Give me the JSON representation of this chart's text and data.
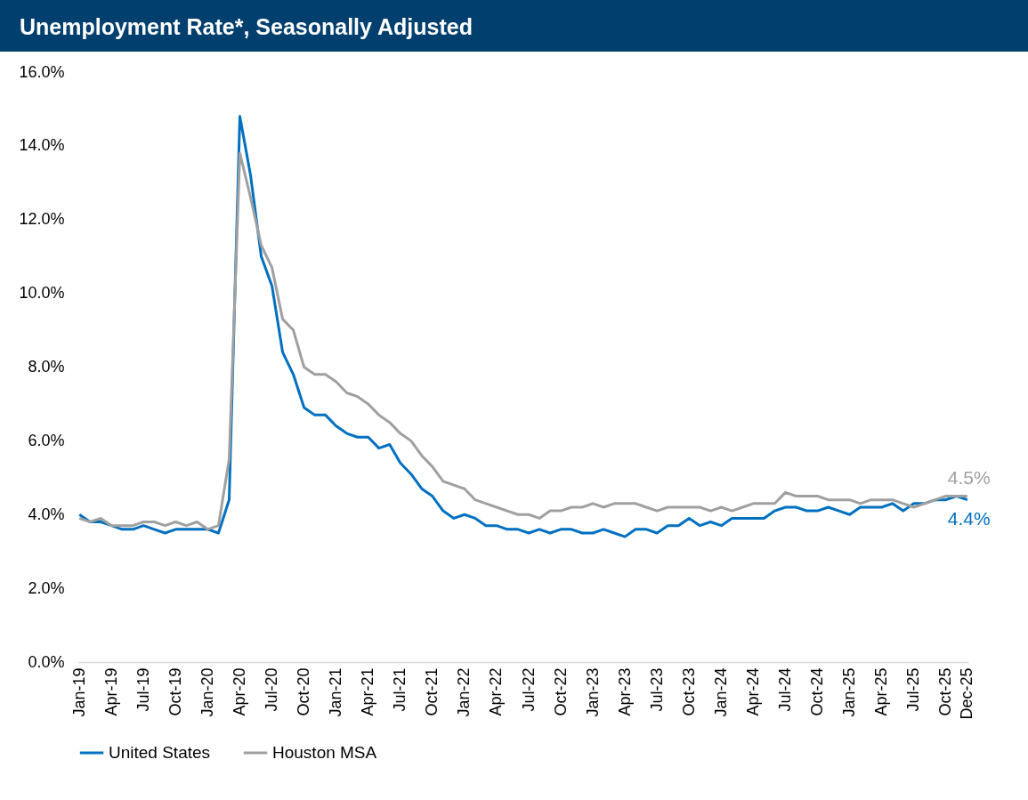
{
  "chart_data": {
    "type": "line",
    "title": "Unemployment Rate*, Seasonally Adjusted",
    "categories": [
      "Jan-19",
      null,
      null,
      "Apr-19",
      null,
      null,
      "Jul-19",
      null,
      null,
      "Oct-19",
      null,
      null,
      "Jan-20",
      null,
      null,
      "Apr-20",
      null,
      null,
      "Jul-20",
      null,
      null,
      "Oct-20",
      null,
      null,
      "Jan-21",
      null,
      null,
      "Apr-21",
      null,
      null,
      "Jul-21",
      null,
      null,
      "Oct-21",
      null,
      null,
      "Jan-22",
      null,
      null,
      "Apr-22",
      null,
      null,
      "Jul-22",
      null,
      null,
      "Oct-22",
      null,
      null,
      "Jan-23",
      null,
      null,
      "Apr-23",
      null,
      null,
      "Jul-23",
      null,
      null,
      "Oct-23",
      null,
      null,
      "Jan-24",
      null,
      null,
      "Apr-24",
      null,
      null,
      "Jul-24",
      null,
      null,
      "Oct-24",
      null,
      null,
      "Jan-25",
      null,
      null,
      "Apr-25",
      null,
      null,
      "Jul-25",
      null,
      null,
      "Oct-25",
      null,
      "Dec-25"
    ],
    "series": [
      {
        "name": "United States",
        "color": "#0070c0",
        "values": [
          4.0,
          3.8,
          3.8,
          3.7,
          3.6,
          3.6,
          3.7,
          3.6,
          3.5,
          3.6,
          3.6,
          3.6,
          3.6,
          3.5,
          4.4,
          14.8,
          13.2,
          11.0,
          10.2,
          8.4,
          7.8,
          6.9,
          6.7,
          6.7,
          6.4,
          6.2,
          6.1,
          6.1,
          5.8,
          5.9,
          5.4,
          5.1,
          4.7,
          4.5,
          4.1,
          3.9,
          4.0,
          3.9,
          3.7,
          3.7,
          3.6,
          3.6,
          3.5,
          3.6,
          3.5,
          3.6,
          3.6,
          3.5,
          3.5,
          3.6,
          3.5,
          3.4,
          3.6,
          3.6,
          3.5,
          3.7,
          3.7,
          3.9,
          3.7,
          3.8,
          3.7,
          3.9,
          3.9,
          3.9,
          3.9,
          4.1,
          4.2,
          4.2,
          4.1,
          4.1,
          4.2,
          4.1,
          4.0,
          4.2,
          4.2,
          4.2,
          4.3,
          4.1,
          4.3,
          4.3,
          4.4,
          4.4,
          4.5,
          4.4
        ]
      },
      {
        "name": "Houston MSA",
        "color": "#a0a0a0",
        "values": [
          3.9,
          3.8,
          3.9,
          3.7,
          3.7,
          3.7,
          3.8,
          3.8,
          3.7,
          3.8,
          3.7,
          3.8,
          3.6,
          3.7,
          5.5,
          13.8,
          12.6,
          11.3,
          10.7,
          9.3,
          9.0,
          8.0,
          7.8,
          7.8,
          7.6,
          7.3,
          7.2,
          7.0,
          6.7,
          6.5,
          6.2,
          6.0,
          5.6,
          5.3,
          4.9,
          4.8,
          4.7,
          4.4,
          4.3,
          4.2,
          4.1,
          4.0,
          4.0,
          3.9,
          4.1,
          4.1,
          4.2,
          4.2,
          4.3,
          4.2,
          4.3,
          4.3,
          4.3,
          4.2,
          4.1,
          4.2,
          4.2,
          4.2,
          4.2,
          4.1,
          4.2,
          4.1,
          4.2,
          4.3,
          4.3,
          4.3,
          4.6,
          4.5,
          4.5,
          4.5,
          4.4,
          4.4,
          4.4,
          4.3,
          4.4,
          4.4,
          4.4,
          4.3,
          4.2,
          4.3,
          4.4,
          4.5,
          4.5,
          4.5
        ]
      }
    ],
    "ylim": [
      0,
      16
    ],
    "yticks": [
      {
        "value": 0,
        "label": "0.0%"
      },
      {
        "value": 2,
        "label": "2.0%"
      },
      {
        "value": 4,
        "label": "4.0%"
      },
      {
        "value": 6,
        "label": "6.0%"
      },
      {
        "value": 8,
        "label": "8.0%"
      },
      {
        "value": 10,
        "label": "10.0%"
      },
      {
        "value": 12,
        "label": "12.0%"
      },
      {
        "value": 14,
        "label": "14.0%"
      },
      {
        "value": 16,
        "label": "16.0%"
      }
    ],
    "annotations": [
      {
        "text": "4.4%",
        "x": "Dec-25",
        "y": 4.4
      },
      {
        "text": "4.5%",
        "x": "Dec-25",
        "y": 4.5
      }
    ],
    "legend": "bottom",
    "grid": false,
    "marker": "none",
    "line_style": "solid"
  }
}
